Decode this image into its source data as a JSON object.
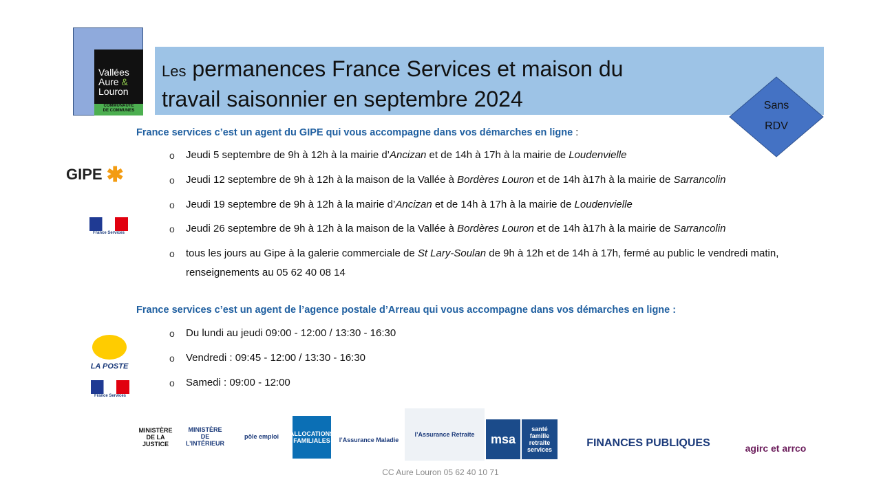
{
  "logo": {
    "lines": [
      "Vallées",
      "Aure",
      "&",
      "Louron"
    ],
    "sub": [
      "COMMUNAUTÉ",
      "DE COMMUNES"
    ]
  },
  "title": {
    "prefix": "Les",
    "line1": "permanences France Services et maison du",
    "line2": "travail saisonnier en septembre 2024"
  },
  "badge": [
    "Sans",
    "RDV"
  ],
  "section1": {
    "heading": "France services c’est un  agent du GIPE qui vous accompagne dans vos démarches en ligne",
    "colon": " :",
    "bullet": "o",
    "logos": {
      "gipe": "GIPE",
      "france_services": "France Services"
    },
    "items": [
      [
        "Jeudi 5 septembre  de 9h à 12h à la mairie d’",
        "Ancizan",
        " et de 14h à 17h à la mairie de ",
        "Loudenvielle"
      ],
      [
        "Jeudi 12 septembre  de 9h à 12h à la maison de la Vallée à ",
        "Bordères Louron",
        " et de 14h à17h à la mairie de ",
        "Sarrancolin"
      ],
      [
        "Jeudi 19 septembre de 9h à 12h à la mairie d’",
        "Ancizan",
        " et de 14h à 17h à la mairie de ",
        "Loudenvielle"
      ],
      [
        "Jeudi 26 septembre de 9h à 12h à la maison de la Vallée à ",
        "Bordères Louron",
        " et de 14h à17h à la mairie de ",
        "Sarrancolin"
      ],
      [
        "tous les jours  au Gipe à la galerie commerciale de ",
        "St Lary-Soulan",
        " de 9h à 12h et de 14h à 17h, fermé au public le vendredi matin, renseignements au 05 62 40 08 14"
      ]
    ]
  },
  "section2": {
    "heading": "France services c’est un agent de l’agence postale d’Arreau qui vous accompagne dans vos démarches en ligne :",
    "bullet": "o",
    "logos": {
      "poste": "LA POSTE",
      "france_services": "France Services"
    },
    "items": [
      [
        "Du lundi au jeudi   09:00 - 12:00 / 13:30 - 16:30"
      ],
      [
        "Vendredi : 09:45 - 12:00 / 13:30 - 16:30"
      ],
      [
        "Samedi : 09:00 - 12:00"
      ]
    ]
  },
  "partners": [
    "MINISTÈRE DE LA JUSTICE",
    "MINISTÈRE DE L’INTÉRIEUR",
    "pôle emploi",
    "ALLOCATIONS FAMILIALES",
    "l’Assurance Maladie",
    "l’Assurance Retraite",
    "msa",
    "santé famille retraite services",
    "FINANCES PUBLIQUES",
    "agirc et arrco"
  ],
  "footer": "CC Aure Louron 05 62 40 10 71"
}
